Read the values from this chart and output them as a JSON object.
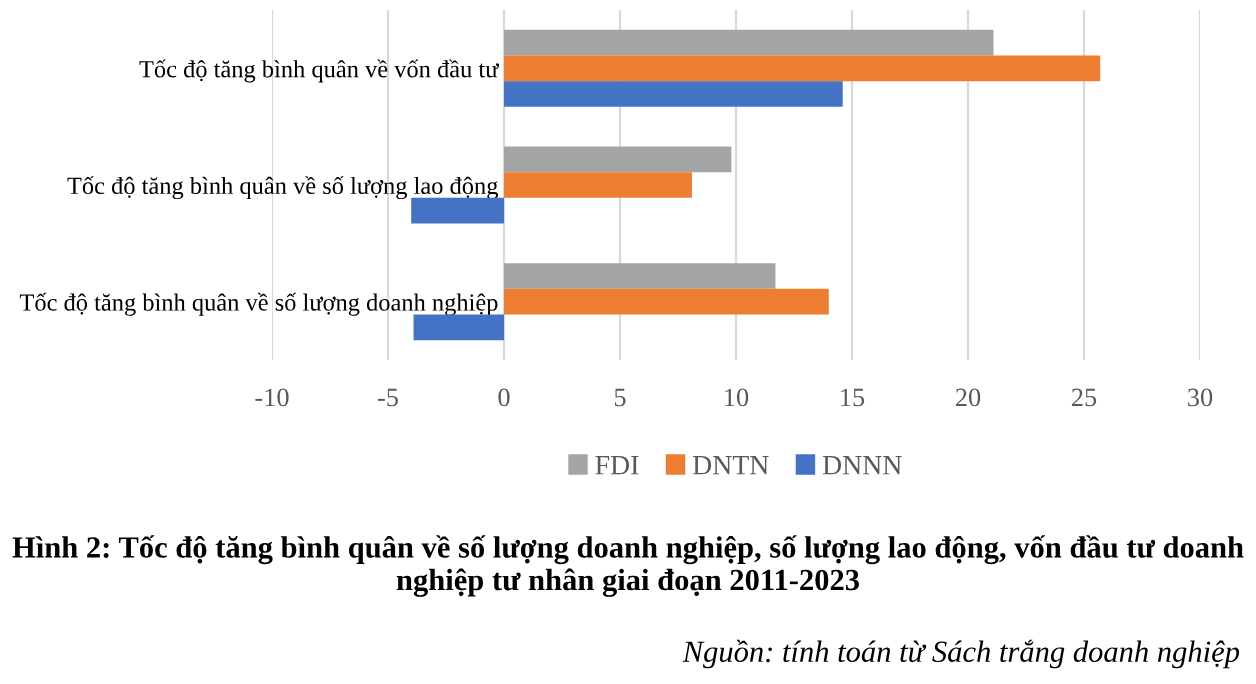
{
  "chart_data": {
    "type": "bar",
    "orientation": "horizontal",
    "title": "Hình 2: Tốc độ tăng bình quân về số lượng doanh nghiệp, số lượng lao động, vốn đầu tư doanh nghiệp tư nhân giai đoạn 2011-2023",
    "annotations": [
      "Nguồn: tính toán từ Sách trắng doanh nghiệp"
    ],
    "categories": [
      "Tốc độ tăng bình quân về vốn đầu tư",
      "Tốc độ tăng bình quân về số lượng lao động",
      "Tốc độ tăng bình quân về số lượng doanh nghiệp"
    ],
    "series": [
      {
        "name": "FDI",
        "color": "#a5a5a5",
        "values": [
          21.1,
          9.8,
          11.7
        ]
      },
      {
        "name": "DNTN",
        "color": "#ed7d31",
        "values": [
          25.7,
          8.1,
          14.0
        ]
      },
      {
        "name": "DNNN",
        "color": "#4472c4",
        "values": [
          14.6,
          -4.0,
          -3.9
        ]
      }
    ],
    "xlim": [
      -10,
      30
    ],
    "xticks": [
      -10,
      -5,
      0,
      5,
      10,
      15,
      20,
      25,
      30
    ],
    "grid": "x",
    "legend": "bottom"
  }
}
